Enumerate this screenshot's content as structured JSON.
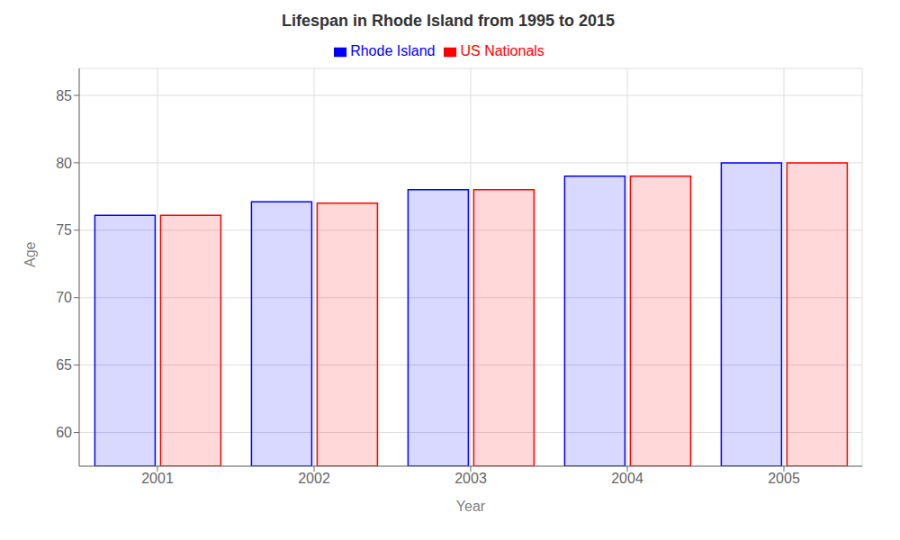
{
  "chart_data": {
    "type": "bar",
    "title": "Lifespan in Rhode Island from 1995 to 2015",
    "xlabel": "Year",
    "ylabel": "Age",
    "categories": [
      "2001",
      "2002",
      "2003",
      "2004",
      "2005"
    ],
    "series": [
      {
        "name": "Rhode Island",
        "color": "#0000ff",
        "values": [
          76.1,
          77.1,
          78.0,
          79.0,
          80.0
        ]
      },
      {
        "name": "US Nationals",
        "color": "#ff0000",
        "values": [
          76.1,
          77.0,
          78.0,
          79.0,
          80.0
        ]
      }
    ],
    "ylim": [
      57.5,
      87
    ],
    "yticks": [
      60,
      65,
      70,
      75,
      80,
      85
    ],
    "grid": true,
    "legend": "top"
  }
}
